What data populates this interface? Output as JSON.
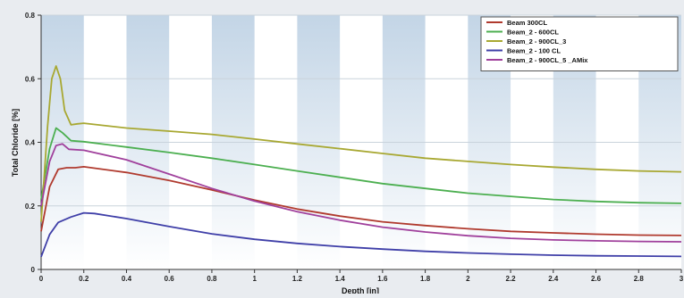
{
  "chart_data": {
    "type": "line",
    "title": "",
    "xlabel": "Depth [in]",
    "ylabel": "Total Chloride  [%]",
    "xlim": [
      0,
      3
    ],
    "ylim": [
      0,
      0.8
    ],
    "x_ticks": [
      "0",
      "0.2",
      "0.4",
      "0.6",
      "0.8",
      "1",
      "1.2",
      "1.4",
      "1.6",
      "1.8",
      "2",
      "2.2",
      "2.4",
      "2.6",
      "2.8",
      "3"
    ],
    "y_ticks": [
      "0",
      "0.2",
      "0.4",
      "0.6",
      "0.8"
    ],
    "grid": true,
    "legend_position": "top-right",
    "series": [
      {
        "name": "Beam 300CL",
        "color": "#b03a2e",
        "points": [
          [
            0,
            0.12
          ],
          [
            0.04,
            0.26
          ],
          [
            0.08,
            0.315
          ],
          [
            0.12,
            0.32
          ],
          [
            0.16,
            0.32
          ],
          [
            0.2,
            0.323
          ],
          [
            0.4,
            0.305
          ],
          [
            0.6,
            0.28
          ],
          [
            0.8,
            0.25
          ],
          [
            1.0,
            0.218
          ],
          [
            1.2,
            0.19
          ],
          [
            1.4,
            0.168
          ],
          [
            1.6,
            0.15
          ],
          [
            1.8,
            0.138
          ],
          [
            2.0,
            0.128
          ],
          [
            2.2,
            0.12
          ],
          [
            2.4,
            0.115
          ],
          [
            2.6,
            0.111
          ],
          [
            2.8,
            0.108
          ],
          [
            3.0,
            0.107
          ]
        ]
      },
      {
        "name": "Beam_2 - 600CL",
        "color": "#4caf50",
        "points": [
          [
            0,
            0.22
          ],
          [
            0.04,
            0.38
          ],
          [
            0.07,
            0.445
          ],
          [
            0.1,
            0.43
          ],
          [
            0.14,
            0.405
          ],
          [
            0.2,
            0.402
          ],
          [
            0.4,
            0.385
          ],
          [
            0.6,
            0.368
          ],
          [
            0.8,
            0.35
          ],
          [
            1.0,
            0.33
          ],
          [
            1.2,
            0.31
          ],
          [
            1.4,
            0.29
          ],
          [
            1.6,
            0.27
          ],
          [
            1.8,
            0.255
          ],
          [
            2.0,
            0.24
          ],
          [
            2.2,
            0.23
          ],
          [
            2.4,
            0.22
          ],
          [
            2.6,
            0.214
          ],
          [
            2.8,
            0.21
          ],
          [
            3.0,
            0.208
          ]
        ]
      },
      {
        "name": "Beam_2 - 900CL_3",
        "color": "#a8a832",
        "points": [
          [
            0,
            0.15
          ],
          [
            0.03,
            0.45
          ],
          [
            0.05,
            0.6
          ],
          [
            0.07,
            0.64
          ],
          [
            0.09,
            0.6
          ],
          [
            0.11,
            0.5
          ],
          [
            0.14,
            0.455
          ],
          [
            0.17,
            0.458
          ],
          [
            0.2,
            0.46
          ],
          [
            0.4,
            0.445
          ],
          [
            0.6,
            0.435
          ],
          [
            0.8,
            0.425
          ],
          [
            1.0,
            0.41
          ],
          [
            1.2,
            0.395
          ],
          [
            1.4,
            0.38
          ],
          [
            1.6,
            0.365
          ],
          [
            1.8,
            0.35
          ],
          [
            2.0,
            0.34
          ],
          [
            2.2,
            0.33
          ],
          [
            2.4,
            0.322
          ],
          [
            2.6,
            0.315
          ],
          [
            2.8,
            0.31
          ],
          [
            3.0,
            0.307
          ]
        ]
      },
      {
        "name": "Beam_2 - 100 CL",
        "color": "#3f3fa8",
        "points": [
          [
            0,
            0.04
          ],
          [
            0.04,
            0.11
          ],
          [
            0.08,
            0.148
          ],
          [
            0.14,
            0.165
          ],
          [
            0.2,
            0.178
          ],
          [
            0.25,
            0.176
          ],
          [
            0.4,
            0.16
          ],
          [
            0.6,
            0.135
          ],
          [
            0.8,
            0.112
          ],
          [
            1.0,
            0.095
          ],
          [
            1.2,
            0.082
          ],
          [
            1.4,
            0.072
          ],
          [
            1.6,
            0.064
          ],
          [
            1.8,
            0.057
          ],
          [
            2.0,
            0.052
          ],
          [
            2.2,
            0.048
          ],
          [
            2.4,
            0.045
          ],
          [
            2.6,
            0.043
          ],
          [
            2.8,
            0.042
          ],
          [
            3.0,
            0.041
          ]
        ]
      },
      {
        "name": "Beam_2 - 900CL_5 _AMix",
        "color": "#a0409c",
        "points": [
          [
            0,
            0.2
          ],
          [
            0.04,
            0.34
          ],
          [
            0.07,
            0.39
          ],
          [
            0.1,
            0.395
          ],
          [
            0.13,
            0.378
          ],
          [
            0.2,
            0.375
          ],
          [
            0.4,
            0.345
          ],
          [
            0.6,
            0.3
          ],
          [
            0.8,
            0.255
          ],
          [
            1.0,
            0.215
          ],
          [
            1.2,
            0.182
          ],
          [
            1.4,
            0.155
          ],
          [
            1.6,
            0.133
          ],
          [
            1.8,
            0.118
          ],
          [
            2.0,
            0.106
          ],
          [
            2.2,
            0.098
          ],
          [
            2.4,
            0.093
          ],
          [
            2.6,
            0.09
          ],
          [
            2.8,
            0.088
          ],
          [
            3.0,
            0.087
          ]
        ]
      }
    ]
  }
}
